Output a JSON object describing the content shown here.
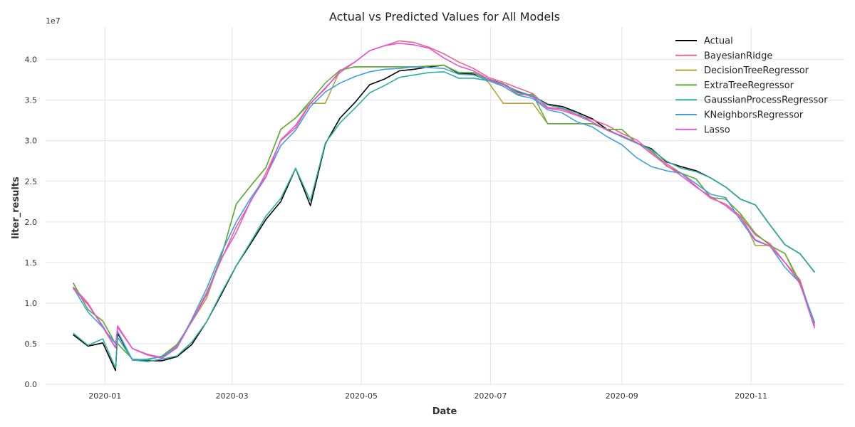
{
  "chart_data": {
    "type": "line",
    "title": "Actual vs Predicted Values for All Models",
    "xlabel": "Date",
    "ylabel": "liter_results",
    "y_multiplier_label": "1e7",
    "x_type": "date",
    "xlim": [
      "2019-12-04",
      "2020-12-15"
    ],
    "ylim": [
      0,
      4.4
    ],
    "grid": true,
    "legend_position": "top-right",
    "x_ticks": [
      "2020-01",
      "2020-03",
      "2020-05",
      "2020-07",
      "2020-09",
      "2020-11"
    ],
    "y_ticks": [
      "0.0",
      "0.5",
      "1.0",
      "1.5",
      "2.0",
      "2.5",
      "3.0",
      "3.5",
      "4.0"
    ],
    "x": [
      "2019-12-17",
      "2019-12-24",
      "2019-12-31",
      "2020-01-06",
      "2020-01-07",
      "2020-01-14",
      "2020-01-21",
      "2020-01-28",
      "2020-02-04",
      "2020-02-11",
      "2020-02-18",
      "2020-02-25",
      "2020-03-03",
      "2020-03-10",
      "2020-03-17",
      "2020-03-24",
      "2020-03-31",
      "2020-04-07",
      "2020-04-14",
      "2020-04-21",
      "2020-04-28",
      "2020-05-05",
      "2020-05-12",
      "2020-05-19",
      "2020-05-26",
      "2020-06-02",
      "2020-06-09",
      "2020-06-16",
      "2020-06-23",
      "2020-06-30",
      "2020-07-07",
      "2020-07-14",
      "2020-07-21",
      "2020-07-28",
      "2020-08-04",
      "2020-08-11",
      "2020-08-18",
      "2020-08-25",
      "2020-09-01",
      "2020-09-08",
      "2020-09-15",
      "2020-09-22",
      "2020-09-29",
      "2020-10-06",
      "2020-10-13",
      "2020-10-20",
      "2020-10-27",
      "2020-11-03",
      "2020-11-10",
      "2020-11-17",
      "2020-11-24",
      "2020-12-01"
    ],
    "series": [
      {
        "name": "Actual",
        "color": "#000000",
        "values": [
          0.61,
          0.47,
          0.51,
          0.17,
          0.63,
          0.3,
          0.29,
          0.29,
          0.34,
          0.49,
          0.77,
          1.11,
          1.46,
          1.74,
          2.03,
          2.25,
          2.66,
          2.2,
          2.96,
          3.28,
          3.47,
          3.69,
          3.76,
          3.86,
          3.88,
          3.91,
          3.93,
          3.83,
          3.82,
          3.76,
          3.7,
          3.6,
          3.55,
          3.45,
          3.42,
          3.35,
          3.27,
          3.14,
          3.05,
          2.97,
          2.9,
          2.74,
          2.68,
          2.63,
          2.54,
          2.43,
          2.28,
          2.21,
          1.96,
          1.72,
          1.61,
          1.38
        ]
      },
      {
        "name": "BayesianRidge",
        "color": "#f06292",
        "values": [
          1.2,
          1.0,
          0.7,
          0.45,
          0.72,
          0.44,
          0.37,
          0.33,
          0.48,
          0.78,
          1.13,
          1.54,
          1.94,
          2.26,
          2.6,
          3.0,
          3.16,
          3.46,
          3.65,
          3.84,
          3.97,
          4.11,
          4.17,
          4.23,
          4.21,
          4.15,
          4.07,
          3.97,
          3.89,
          3.78,
          3.72,
          3.65,
          3.58,
          3.41,
          3.39,
          3.32,
          3.26,
          3.19,
          3.09,
          3.01,
          2.86,
          2.72,
          2.6,
          2.44,
          2.29,
          2.22,
          2.07,
          1.84,
          1.73,
          1.5,
          1.29,
          0.72
        ]
      },
      {
        "name": "DecisionTreeRegressor",
        "color": "#b5a33a",
        "values": [
          1.25,
          0.92,
          0.78,
          0.5,
          0.5,
          0.31,
          0.3,
          0.35,
          0.49,
          0.77,
          1.06,
          1.58,
          2.22,
          2.45,
          2.67,
          3.14,
          3.28,
          3.46,
          3.46,
          3.87,
          3.91,
          3.91,
          3.91,
          3.91,
          3.91,
          3.92,
          3.93,
          3.84,
          3.84,
          3.72,
          3.46,
          3.46,
          3.46,
          3.21,
          3.21,
          3.21,
          3.21,
          3.14,
          3.14,
          2.97,
          2.88,
          2.69,
          2.6,
          2.53,
          2.3,
          2.28,
          2.1,
          1.71,
          1.71,
          1.61,
          1.23,
          0.75
        ]
      },
      {
        "name": "ExtraTreeRegressor",
        "color": "#5daf3b",
        "values": [
          1.25,
          0.92,
          0.78,
          0.5,
          0.5,
          0.31,
          0.3,
          0.35,
          0.49,
          0.77,
          1.11,
          1.58,
          2.22,
          2.45,
          2.67,
          3.14,
          3.28,
          3.49,
          3.71,
          3.87,
          3.91,
          3.91,
          3.91,
          3.91,
          3.91,
          3.92,
          3.93,
          3.84,
          3.84,
          3.75,
          3.7,
          3.57,
          3.57,
          3.21,
          3.21,
          3.21,
          3.21,
          3.14,
          3.14,
          2.97,
          2.88,
          2.69,
          2.6,
          2.53,
          2.3,
          2.28,
          2.1,
          1.86,
          1.71,
          1.61,
          1.26,
          0.75
        ]
      },
      {
        "name": "GaussianProcessRegressor",
        "color": "#2bb0a0",
        "values": [
          0.63,
          0.48,
          0.56,
          0.2,
          0.58,
          0.3,
          0.28,
          0.31,
          0.35,
          0.52,
          0.77,
          1.13,
          1.46,
          1.76,
          2.07,
          2.29,
          2.66,
          2.26,
          2.97,
          3.22,
          3.4,
          3.59,
          3.68,
          3.78,
          3.81,
          3.84,
          3.85,
          3.77,
          3.77,
          3.74,
          3.69,
          3.61,
          3.55,
          3.44,
          3.4,
          3.34,
          3.23,
          3.13,
          3.05,
          2.97,
          2.89,
          2.75,
          2.66,
          2.62,
          2.54,
          2.43,
          2.28,
          2.21,
          1.96,
          1.72,
          1.61,
          1.38
        ]
      },
      {
        "name": "KNeighborsRegressor",
        "color": "#3f9fe0",
        "values": [
          1.19,
          0.89,
          0.7,
          0.5,
          0.65,
          0.3,
          0.31,
          0.34,
          0.46,
          0.8,
          1.18,
          1.62,
          2.0,
          2.3,
          2.56,
          2.94,
          3.13,
          3.42,
          3.6,
          3.71,
          3.79,
          3.85,
          3.88,
          3.89,
          3.91,
          3.9,
          3.89,
          3.82,
          3.81,
          3.74,
          3.67,
          3.56,
          3.52,
          3.38,
          3.34,
          3.23,
          3.17,
          3.05,
          2.95,
          2.79,
          2.68,
          2.63,
          2.6,
          2.47,
          2.34,
          2.3,
          2.02,
          1.77,
          1.7,
          1.44,
          1.25,
          0.76
        ]
      },
      {
        "name": "Lasso",
        "color": "#e056d8",
        "values": [
          1.18,
          0.98,
          0.72,
          0.45,
          0.7,
          0.44,
          0.36,
          0.32,
          0.45,
          0.78,
          1.1,
          1.55,
          1.87,
          2.27,
          2.55,
          3.01,
          3.19,
          3.46,
          3.64,
          3.86,
          3.97,
          4.11,
          4.17,
          4.2,
          4.18,
          4.14,
          4.02,
          3.92,
          3.86,
          3.76,
          3.69,
          3.59,
          3.54,
          3.4,
          3.37,
          3.31,
          3.23,
          3.13,
          3.06,
          2.98,
          2.84,
          2.7,
          2.57,
          2.43,
          2.31,
          2.2,
          2.05,
          1.78,
          1.7,
          1.5,
          1.25,
          0.69
        ]
      }
    ]
  }
}
